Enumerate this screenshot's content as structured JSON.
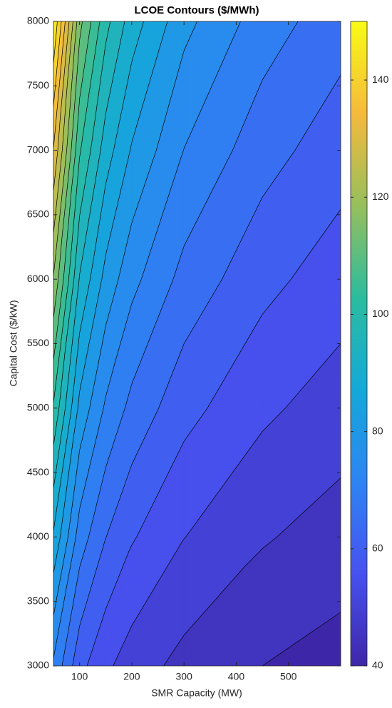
{
  "chart_data": {
    "type": "contour",
    "title": "LCOE Contours ($/MWh)",
    "x_label": "SMR Capacity (MW)",
    "y_label": "Capital Cost ($/kW)",
    "x": [
      50,
      100,
      150,
      200,
      300,
      450,
      600
    ],
    "y": [
      3000,
      4000,
      5000,
      6000,
      7000,
      8000
    ],
    "z": [
      [
        74.1,
        61.6,
        56.0,
        52.5,
        48.4,
        45.0,
        43.0
      ],
      [
        89.3,
        72.6,
        65.1,
        60.5,
        55.1,
        50.5,
        47.8
      ],
      [
        104.4,
        83.6,
        74.2,
        68.5,
        61.7,
        56.0,
        52.6
      ],
      [
        119.6,
        94.6,
        83.3,
        76.5,
        68.3,
        61.5,
        57.4
      ],
      [
        134.8,
        105.6,
        92.4,
        84.5,
        74.9,
        67.0,
        62.2
      ],
      [
        150.0,
        116.6,
        101.6,
        92.5,
        81.5,
        72.5,
        67.0
      ]
    ],
    "levels": [
      40,
      45,
      50,
      55,
      60,
      65,
      70,
      75,
      80,
      85,
      90,
      95,
      100,
      105,
      110,
      115,
      120,
      125,
      130,
      135,
      140,
      145
    ],
    "xlim": [
      50,
      600
    ],
    "xticks": [
      100,
      200,
      300,
      400,
      500
    ],
    "ylim": [
      3000,
      8000
    ],
    "yticks": [
      3000,
      3500,
      4000,
      4500,
      5000,
      5500,
      6000,
      6500,
      7000,
      7500,
      8000
    ],
    "clim": [
      40,
      150
    ],
    "colorbar_ticks": [
      40,
      60,
      80,
      100,
      120,
      140
    ],
    "colormap": [
      "#3e26a8",
      "#4751f0",
      "#2d84f3",
      "#14a9d9",
      "#2bbc9e",
      "#97bf5c",
      "#f5ba3c",
      "#f9fb15"
    ],
    "line_color": "#000000",
    "grid": false
  }
}
